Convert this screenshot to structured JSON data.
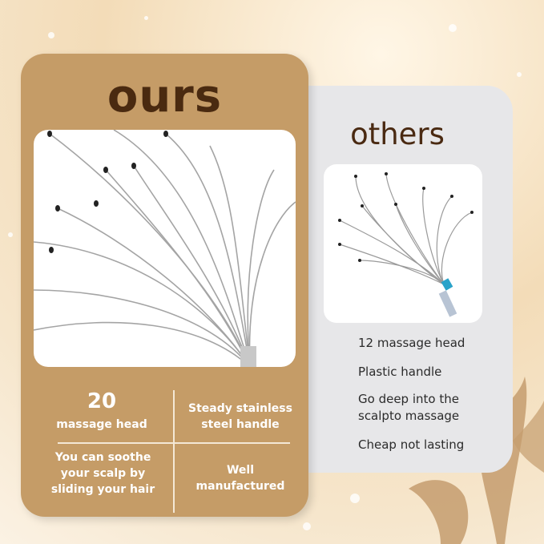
{
  "ours": {
    "title": "ours",
    "features": {
      "count": "20",
      "count_label": "massage head",
      "handle": "Steady stainless steel handle",
      "soothe": "You can soothe your scalp by sliding your hair",
      "quality": "Well manufactured"
    }
  },
  "others": {
    "title": "others",
    "items": [
      "12 massage head",
      "Plastic handle",
      "Go deep into the scalpto massage",
      "Cheap not lasting"
    ]
  },
  "colors": {
    "ours_card": "#c59c67",
    "title_brown": "#4a2a10",
    "others_card": "#e7e7e9",
    "handle_accent": "#2aa3c9"
  },
  "icons": [
    "whisk-scalp-massager-image",
    "leaf-decoration"
  ]
}
